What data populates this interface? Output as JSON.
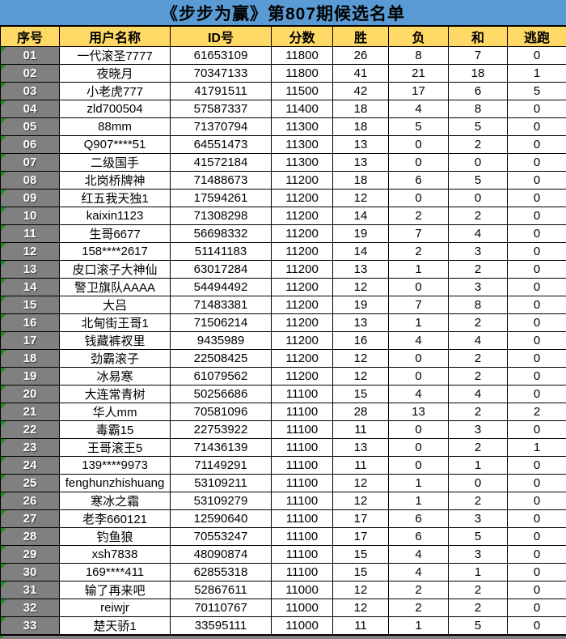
{
  "title": "《步步为赢》第807期候选名单",
  "colors": {
    "title_bg": "#5B9BD5",
    "header_bg": "#FFD966",
    "seq_bg": "#808080",
    "triangle_green": "#228B22",
    "grid": "#000000"
  },
  "table": {
    "columns": [
      "序号",
      "用户名称",
      "ID号",
      "分数",
      "胜",
      "负",
      "和",
      "逃跑"
    ],
    "rows": [
      [
        "01",
        "一代滚圣7777",
        "61653109",
        "11800",
        "26",
        "8",
        "7",
        "0"
      ],
      [
        "02",
        "夜晓月",
        "70347133",
        "11800",
        "41",
        "21",
        "18",
        "1"
      ],
      [
        "03",
        "小老虎777",
        "41791511",
        "11500",
        "42",
        "17",
        "6",
        "5"
      ],
      [
        "04",
        "zld700504",
        "57587337",
        "11400",
        "18",
        "4",
        "8",
        "0"
      ],
      [
        "05",
        "88mm",
        "71370794",
        "11300",
        "18",
        "5",
        "5",
        "0"
      ],
      [
        "06",
        "Q907****51",
        "64551473",
        "11300",
        "13",
        "0",
        "2",
        "0"
      ],
      [
        "07",
        "二级国手",
        "41572184",
        "11300",
        "13",
        "0",
        "0",
        "0"
      ],
      [
        "08",
        "北岗桥牌神",
        "71488673",
        "11200",
        "18",
        "6",
        "5",
        "0"
      ],
      [
        "09",
        "红五我天独1",
        "17594261",
        "11200",
        "12",
        "0",
        "0",
        "0"
      ],
      [
        "10",
        "kaixin1123",
        "71308298",
        "11200",
        "14",
        "2",
        "2",
        "0"
      ],
      [
        "11",
        "生哥6677",
        "56698332",
        "11200",
        "19",
        "7",
        "4",
        "0"
      ],
      [
        "12",
        "158****2617",
        "51141183",
        "11200",
        "14",
        "2",
        "3",
        "0"
      ],
      [
        "13",
        "皮口滚子大神仙",
        "63017284",
        "11200",
        "13",
        "1",
        "2",
        "0"
      ],
      [
        "14",
        "警卫旗队AAAA",
        "54494492",
        "11200",
        "12",
        "0",
        "3",
        "0"
      ],
      [
        "15",
        "大吕",
        "71483381",
        "11200",
        "19",
        "7",
        "8",
        "0"
      ],
      [
        "16",
        "北甸街王哥1",
        "71506214",
        "11200",
        "13",
        "1",
        "2",
        "0"
      ],
      [
        "17",
        "钱藏裤衩里",
        "9435989",
        "11200",
        "16",
        "4",
        "4",
        "0"
      ],
      [
        "18",
        "劲霸滚子",
        "22508425",
        "11200",
        "12",
        "0",
        "2",
        "0"
      ],
      [
        "19",
        "冰易寒",
        "61079562",
        "11200",
        "12",
        "0",
        "2",
        "0"
      ],
      [
        "20",
        "大连常青树",
        "50256686",
        "11100",
        "15",
        "4",
        "4",
        "0"
      ],
      [
        "21",
        "华人mm",
        "70581096",
        "11100",
        "28",
        "13",
        "2",
        "2"
      ],
      [
        "22",
        "毒霸15",
        "22753922",
        "11100",
        "11",
        "0",
        "3",
        "0"
      ],
      [
        "23",
        "王哥滚王5",
        "71436139",
        "11100",
        "13",
        "0",
        "2",
        "1"
      ],
      [
        "24",
        "139****9973",
        "71149291",
        "11100",
        "11",
        "0",
        "1",
        "0"
      ],
      [
        "25",
        "fenghunzhishuang",
        "53109211",
        "11100",
        "12",
        "1",
        "0",
        "0"
      ],
      [
        "26",
        "寒冰之霜",
        "53109279",
        "11100",
        "12",
        "1",
        "2",
        "0"
      ],
      [
        "27",
        "老李660121",
        "12590640",
        "11100",
        "17",
        "6",
        "3",
        "0"
      ],
      [
        "28",
        "钓鱼狼",
        "70553247",
        "11100",
        "17",
        "6",
        "5",
        "0"
      ],
      [
        "29",
        "xsh7838",
        "48090874",
        "11100",
        "15",
        "4",
        "3",
        "0"
      ],
      [
        "30",
        "169****411",
        "62855318",
        "11100",
        "15",
        "4",
        "1",
        "0"
      ],
      [
        "31",
        "输了再来吧",
        "52867611",
        "11000",
        "12",
        "2",
        "2",
        "0"
      ],
      [
        "32",
        "reiwjr",
        "70110767",
        "11000",
        "12",
        "2",
        "2",
        "0"
      ],
      [
        "33",
        "楚天骄1",
        "33595111",
        "11000",
        "11",
        "1",
        "5",
        "0"
      ]
    ]
  }
}
